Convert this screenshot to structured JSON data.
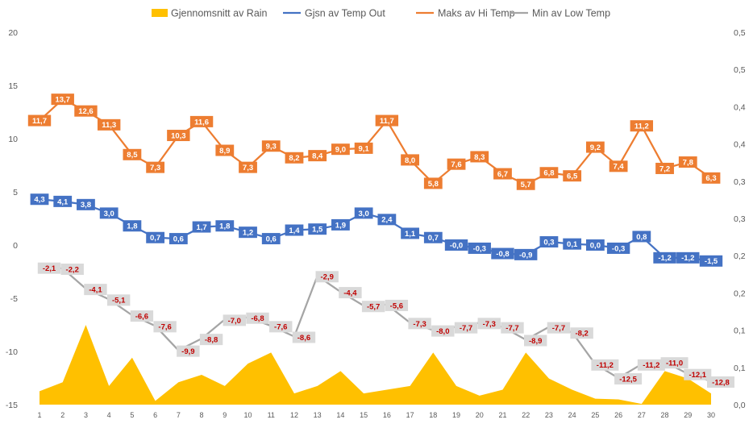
{
  "chart_data": {
    "type": "combo",
    "legend_position": "top",
    "grid": false,
    "x": [
      1,
      2,
      3,
      4,
      5,
      6,
      7,
      8,
      9,
      10,
      11,
      12,
      13,
      14,
      15,
      16,
      17,
      18,
      19,
      20,
      21,
      22,
      23,
      24,
      25,
      26,
      27,
      28,
      29,
      30
    ],
    "y_left": {
      "range": [
        -15,
        20
      ],
      "ticks": [
        20,
        15,
        10,
        5,
        0,
        -5,
        -10,
        -15
      ],
      "tick_labels": [
        "20",
        "15",
        "10",
        "5",
        "0",
        "-5",
        "-10",
        "-15"
      ]
    },
    "y_right": {
      "range": [
        0,
        0.5
      ],
      "ticks": [
        0.5,
        0.45,
        0.4,
        0.35,
        0.3,
        0.25,
        0.2,
        0.15,
        0.1,
        0.05,
        0.0
      ],
      "tick_labels": [
        "0,5",
        "0,5",
        "0,4",
        "0,4",
        "0,3",
        "0,3",
        "0,2",
        "0,2",
        "0,1",
        "0,1",
        "0,0"
      ]
    },
    "series": [
      {
        "name": "Gjennomsnitt av Rain",
        "kind": "area",
        "axis": "right",
        "color": "#FFC000",
        "values": [
          0.018,
          0.03,
          0.107,
          0.025,
          0.063,
          0.005,
          0.03,
          0.04,
          0.025,
          0.055,
          0.07,
          0.015,
          0.025,
          0.045,
          0.015,
          0.02,
          0.025,
          0.07,
          0.025,
          0.012,
          0.02,
          0.07,
          0.035,
          0.02,
          0.008,
          0.007,
          0.001,
          0.045,
          0.035,
          0.015
        ]
      },
      {
        "name": "Gjsn av Temp Out",
        "kind": "line",
        "axis": "left",
        "color": "#4472C4",
        "label_text_color": "#ffffff",
        "values": [
          4.3,
          4.1,
          3.8,
          3.0,
          1.8,
          0.7,
          0.6,
          1.7,
          1.8,
          1.2,
          0.6,
          1.4,
          1.5,
          1.9,
          3.0,
          2.4,
          1.1,
          0.7,
          -0.0,
          -0.3,
          -0.8,
          -0.9,
          0.3,
          0.1,
          0.0,
          -0.3,
          0.8,
          -1.2,
          -1.2,
          -1.5
        ],
        "labels": [
          "4,3",
          "4,1",
          "3,8",
          "3,0",
          "1,8",
          "0,7",
          "0,6",
          "1,7",
          "1,8",
          "1,2",
          "0,6",
          "1,4",
          "1,5",
          "1,9",
          "3,0",
          "2,4",
          "1,1",
          "0,7",
          "-0,0",
          "-0,3",
          "-0,8",
          "-0,9",
          "0,3",
          "0,1",
          "0,0",
          "-0,3",
          "0,8",
          "-1,2",
          "-1,2",
          "-1,5"
        ]
      },
      {
        "name": "Maks av Hi Temp",
        "kind": "line",
        "axis": "left",
        "color": "#ED7D31",
        "label_text_color": "#ffffff",
        "values": [
          11.7,
          13.7,
          12.6,
          11.3,
          8.5,
          7.3,
          10.3,
          11.6,
          8.9,
          7.3,
          9.3,
          8.2,
          8.4,
          9.0,
          9.1,
          11.7,
          8.0,
          5.8,
          7.6,
          8.3,
          6.7,
          5.7,
          6.8,
          6.5,
          9.2,
          7.4,
          11.2,
          7.2,
          7.8,
          6.3
        ],
        "labels": [
          "11,7",
          "13,7",
          "12,6",
          "11,3",
          "8,5",
          "7,3",
          "10,3",
          "11,6",
          "8,9",
          "7,3",
          "9,3",
          "8,2",
          "8,4",
          "9,0",
          "9,1",
          "11,7",
          "8,0",
          "5,8",
          "7,6",
          "8,3",
          "6,7",
          "5,7",
          "6,8",
          "6,5",
          "9,2",
          "7,4",
          "11,2",
          "7,2",
          "7,8",
          "6,3"
        ]
      },
      {
        "name": "Min av Low Temp",
        "kind": "line",
        "axis": "left",
        "color": "#A5A5A5",
        "label_text_color": "#C00000",
        "values": [
          -2.1,
          -2.2,
          -4.1,
          -5.1,
          -6.6,
          -7.6,
          -9.9,
          -8.8,
          -7.0,
          -6.8,
          -7.6,
          -8.6,
          -2.9,
          -4.4,
          -5.7,
          -5.6,
          -7.3,
          -8.0,
          -7.7,
          -7.3,
          -7.7,
          -8.9,
          -7.7,
          -8.2,
          -11.2,
          -12.5,
          -11.2,
          -11.0,
          -12.1,
          -12.8
        ],
        "labels": [
          "-2,1",
          "-2,2",
          "-4,1",
          "-5,1",
          "-6,6",
          "-7,6",
          "-9,9",
          "-8,8",
          "-7,0",
          "-6,8",
          "-7,6",
          "-8,6",
          "-2,9",
          "-4,4",
          "-5,7",
          "-5,6",
          "-7,3",
          "-8,0",
          "-7,7",
          "-7,3",
          "-7,7",
          "-8,9",
          "-7,7",
          "-8,2",
          "-11,2",
          "-12,5",
          "-11,2",
          "-11,0",
          "-12,1",
          "-12,8"
        ]
      }
    ]
  }
}
